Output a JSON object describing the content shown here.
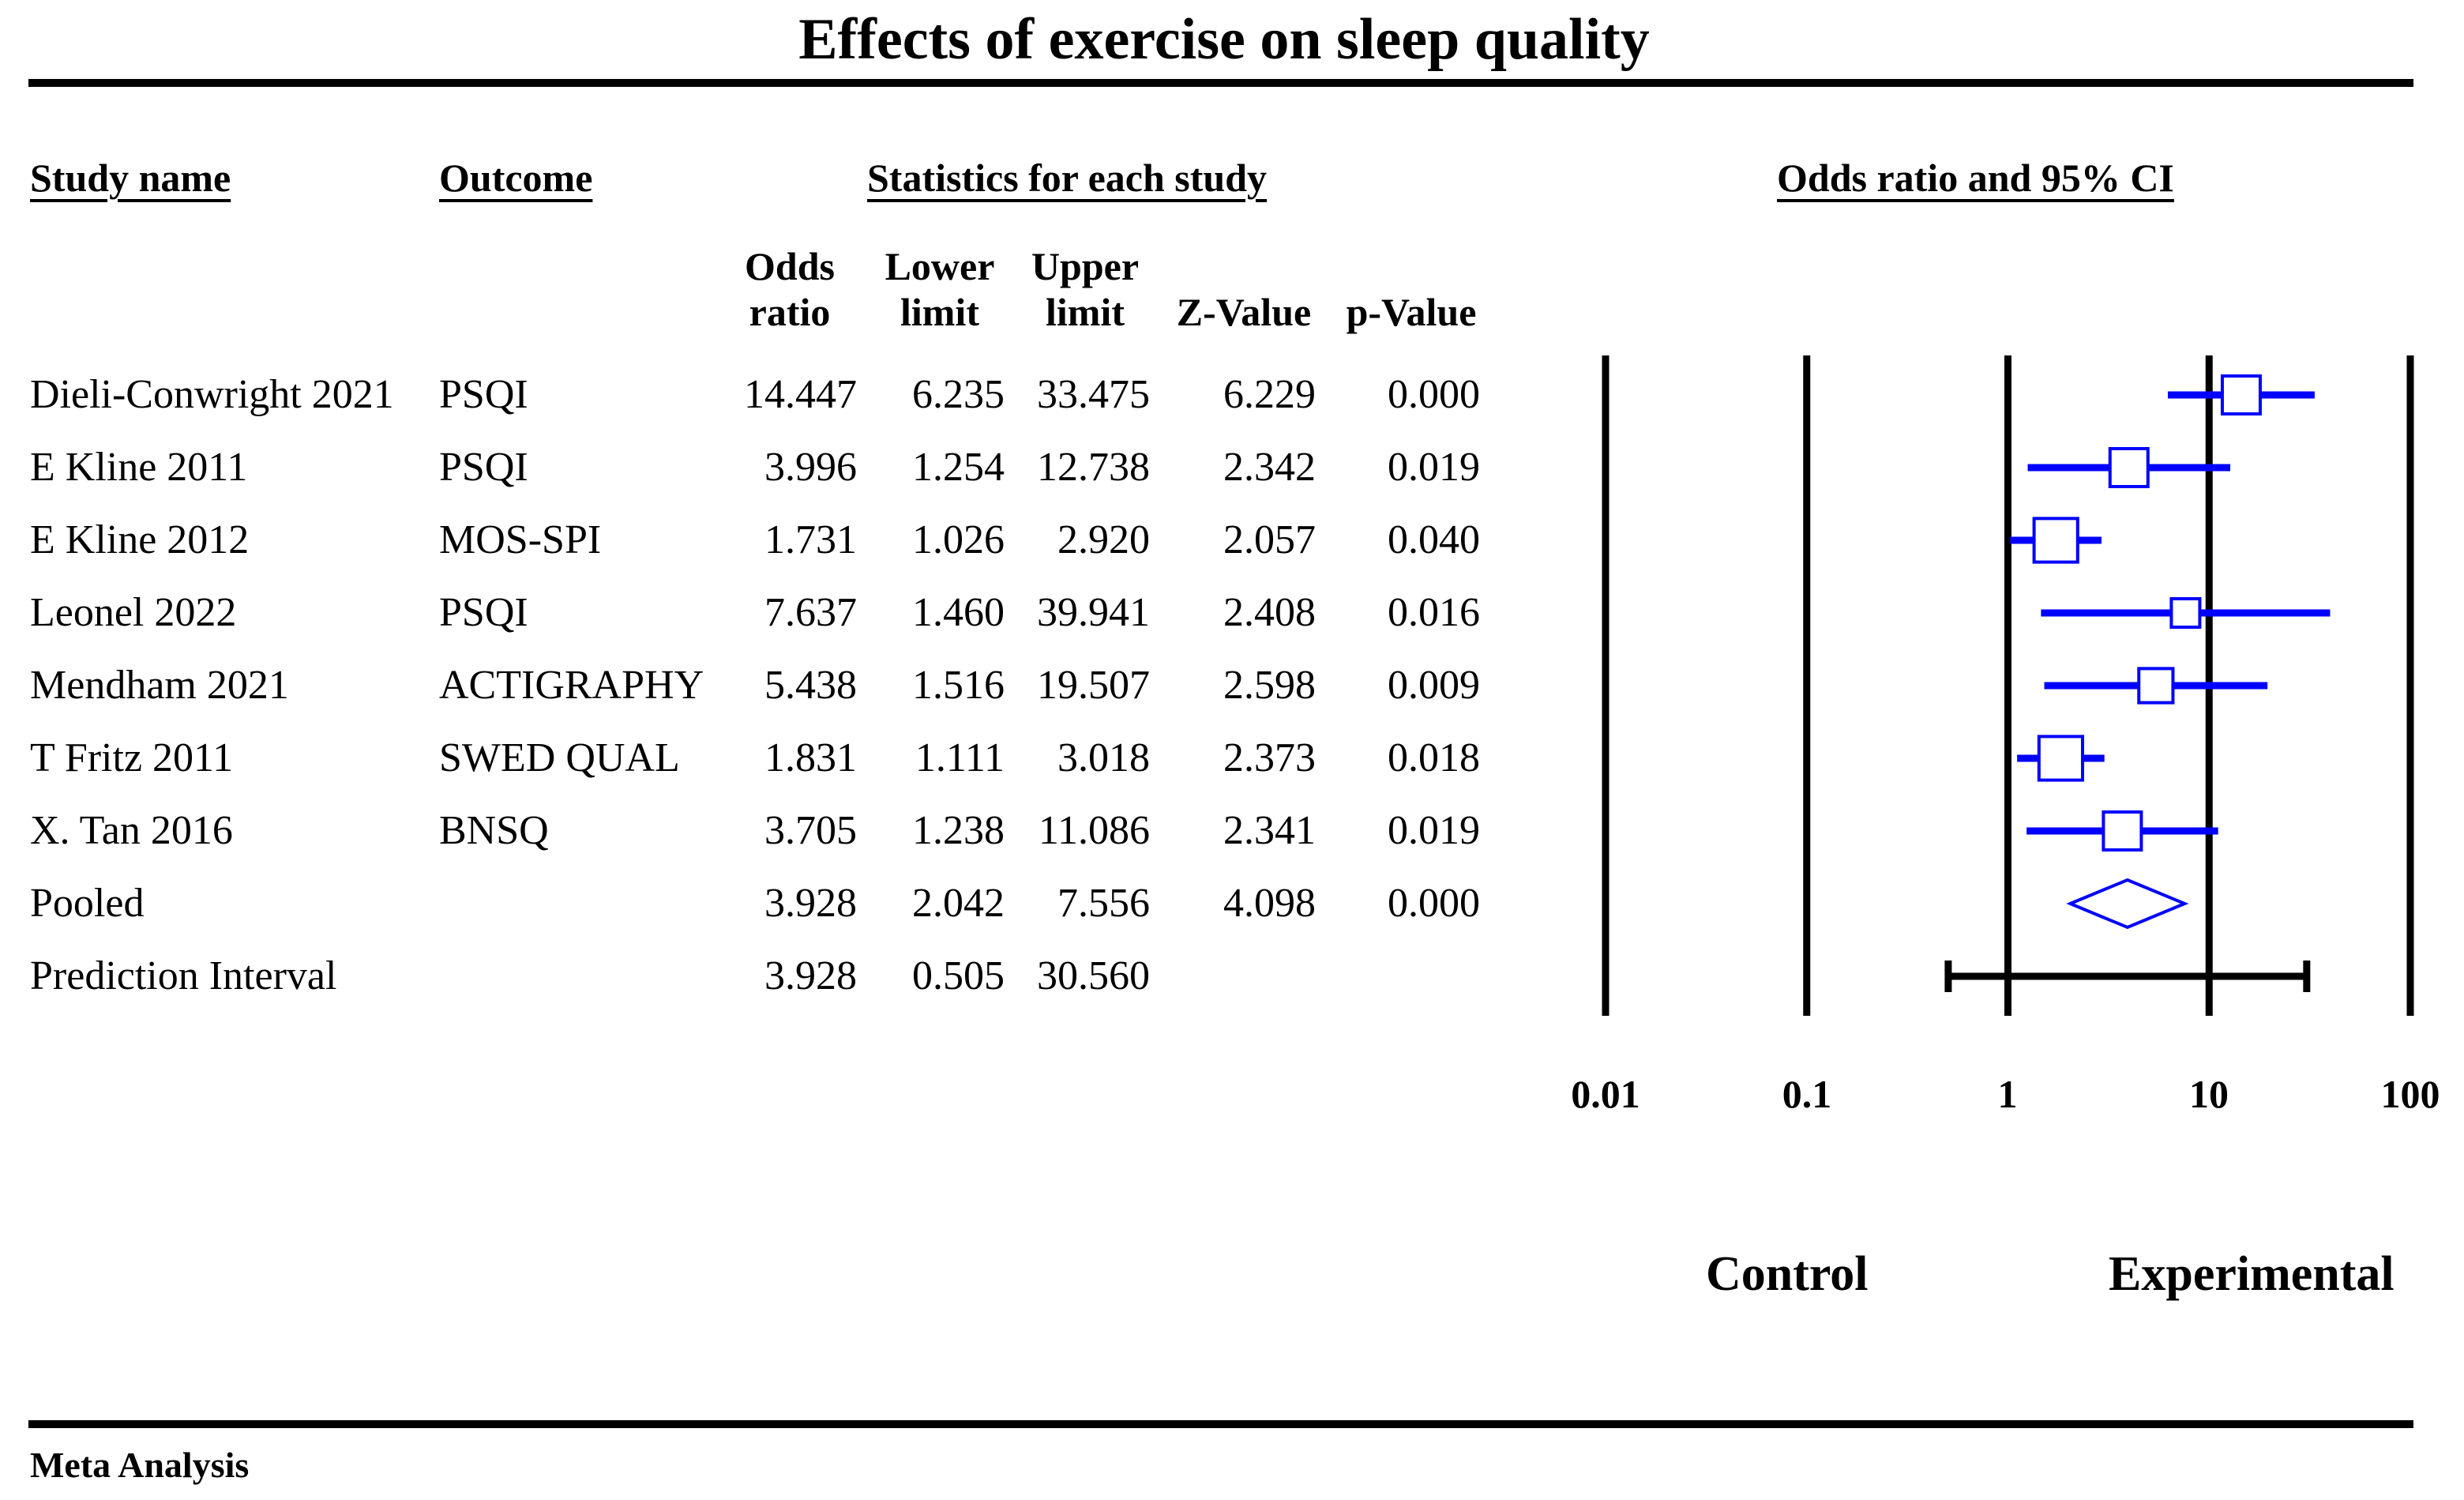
{
  "title": "Effects of exercise on sleep quality",
  "headers": {
    "study_name": "Study name",
    "outcome": "Outcome",
    "statistics": "Statistics for each study",
    "plot": "Odds ratio and 95% CI",
    "odds_ratio_1": "Odds",
    "odds_ratio_2": "ratio",
    "lower_limit_1": "Lower",
    "lower_limit_2": "limit",
    "upper_limit_1": "Upper",
    "upper_limit_2": "limit",
    "z_value": "Z-Value",
    "p_value": "p-Value"
  },
  "rows": [
    {
      "study": "Dieli-Conwright 2021",
      "outcome": "PSQI",
      "or": "14.447",
      "lower": "6.235",
      "upper": "33.475",
      "z": "6.229",
      "p": "0.000"
    },
    {
      "study": "E Kline 2011",
      "outcome": "PSQI",
      "or": "3.996",
      "lower": "1.254",
      "upper": "12.738",
      "z": "2.342",
      "p": "0.019"
    },
    {
      "study": "E Kline 2012",
      "outcome": "MOS-SPI",
      "or": "1.731",
      "lower": "1.026",
      "upper": "2.920",
      "z": "2.057",
      "p": "0.040"
    },
    {
      "study": "Leonel 2022",
      "outcome": "PSQI",
      "or": "7.637",
      "lower": "1.460",
      "upper": "39.941",
      "z": "2.408",
      "p": "0.016"
    },
    {
      "study": "Mendham 2021",
      "outcome": "ACTIGRAPHY",
      "or": "5.438",
      "lower": "1.516",
      "upper": "19.507",
      "z": "2.598",
      "p": "0.009"
    },
    {
      "study": "T Fritz 2011",
      "outcome": "SWED QUAL",
      "or": "1.831",
      "lower": "1.111",
      "upper": "3.018",
      "z": "2.373",
      "p": "0.018"
    },
    {
      "study": "X. Tan 2016",
      "outcome": "BNSQ",
      "or": "3.705",
      "lower": "1.238",
      "upper": "11.086",
      "z": "2.341",
      "p": "0.019"
    },
    {
      "study": "Pooled",
      "outcome": "",
      "or": "3.928",
      "lower": "2.042",
      "upper": "7.556",
      "z": "4.098",
      "p": "0.000"
    },
    {
      "study": "Prediction Interval",
      "outcome": "",
      "or": "3.928",
      "lower": "0.505",
      "upper": "30.560",
      "z": "",
      "p": ""
    }
  ],
  "axis": {
    "ticks": [
      "0.01",
      "0.1",
      "1",
      "10",
      "100"
    ],
    "left_label": "Control",
    "right_label": "Experimental"
  },
  "footer": "Meta Analysis",
  "colors": {
    "marker": "#0000ff",
    "axis": "#000000"
  },
  "chart_data": {
    "type": "forest",
    "title": "Effects of exercise on sleep quality",
    "scale": "log10",
    "xlim": [
      0.01,
      100
    ],
    "xticks": [
      0.01,
      0.1,
      1,
      10,
      100
    ],
    "xlabel_left": "Control",
    "xlabel_right": "Experimental",
    "studies": [
      {
        "name": "Dieli-Conwright 2021",
        "or": 14.447,
        "lower": 6.235,
        "upper": 33.475,
        "weight": 1.0
      },
      {
        "name": "E Kline 2011",
        "or": 3.996,
        "lower": 1.254,
        "upper": 12.738,
        "weight": 1.0
      },
      {
        "name": "E Kline 2012",
        "or": 1.731,
        "lower": 1.026,
        "upper": 2.92,
        "weight": 1.15
      },
      {
        "name": "Leonel 2022",
        "or": 7.637,
        "lower": 1.46,
        "upper": 39.941,
        "weight": 0.75
      },
      {
        "name": "Mendham 2021",
        "or": 5.438,
        "lower": 1.516,
        "upper": 19.507,
        "weight": 0.9
      },
      {
        "name": "T Fritz 2011",
        "or": 1.831,
        "lower": 1.111,
        "upper": 3.018,
        "weight": 1.15
      },
      {
        "name": "X. Tan 2016",
        "or": 3.705,
        "lower": 1.238,
        "upper": 11.086,
        "weight": 1.0
      }
    ],
    "pooled": {
      "or": 3.928,
      "lower": 2.042,
      "upper": 7.556
    },
    "prediction_interval": {
      "or": 3.928,
      "lower": 0.505,
      "upper": 30.56
    }
  }
}
